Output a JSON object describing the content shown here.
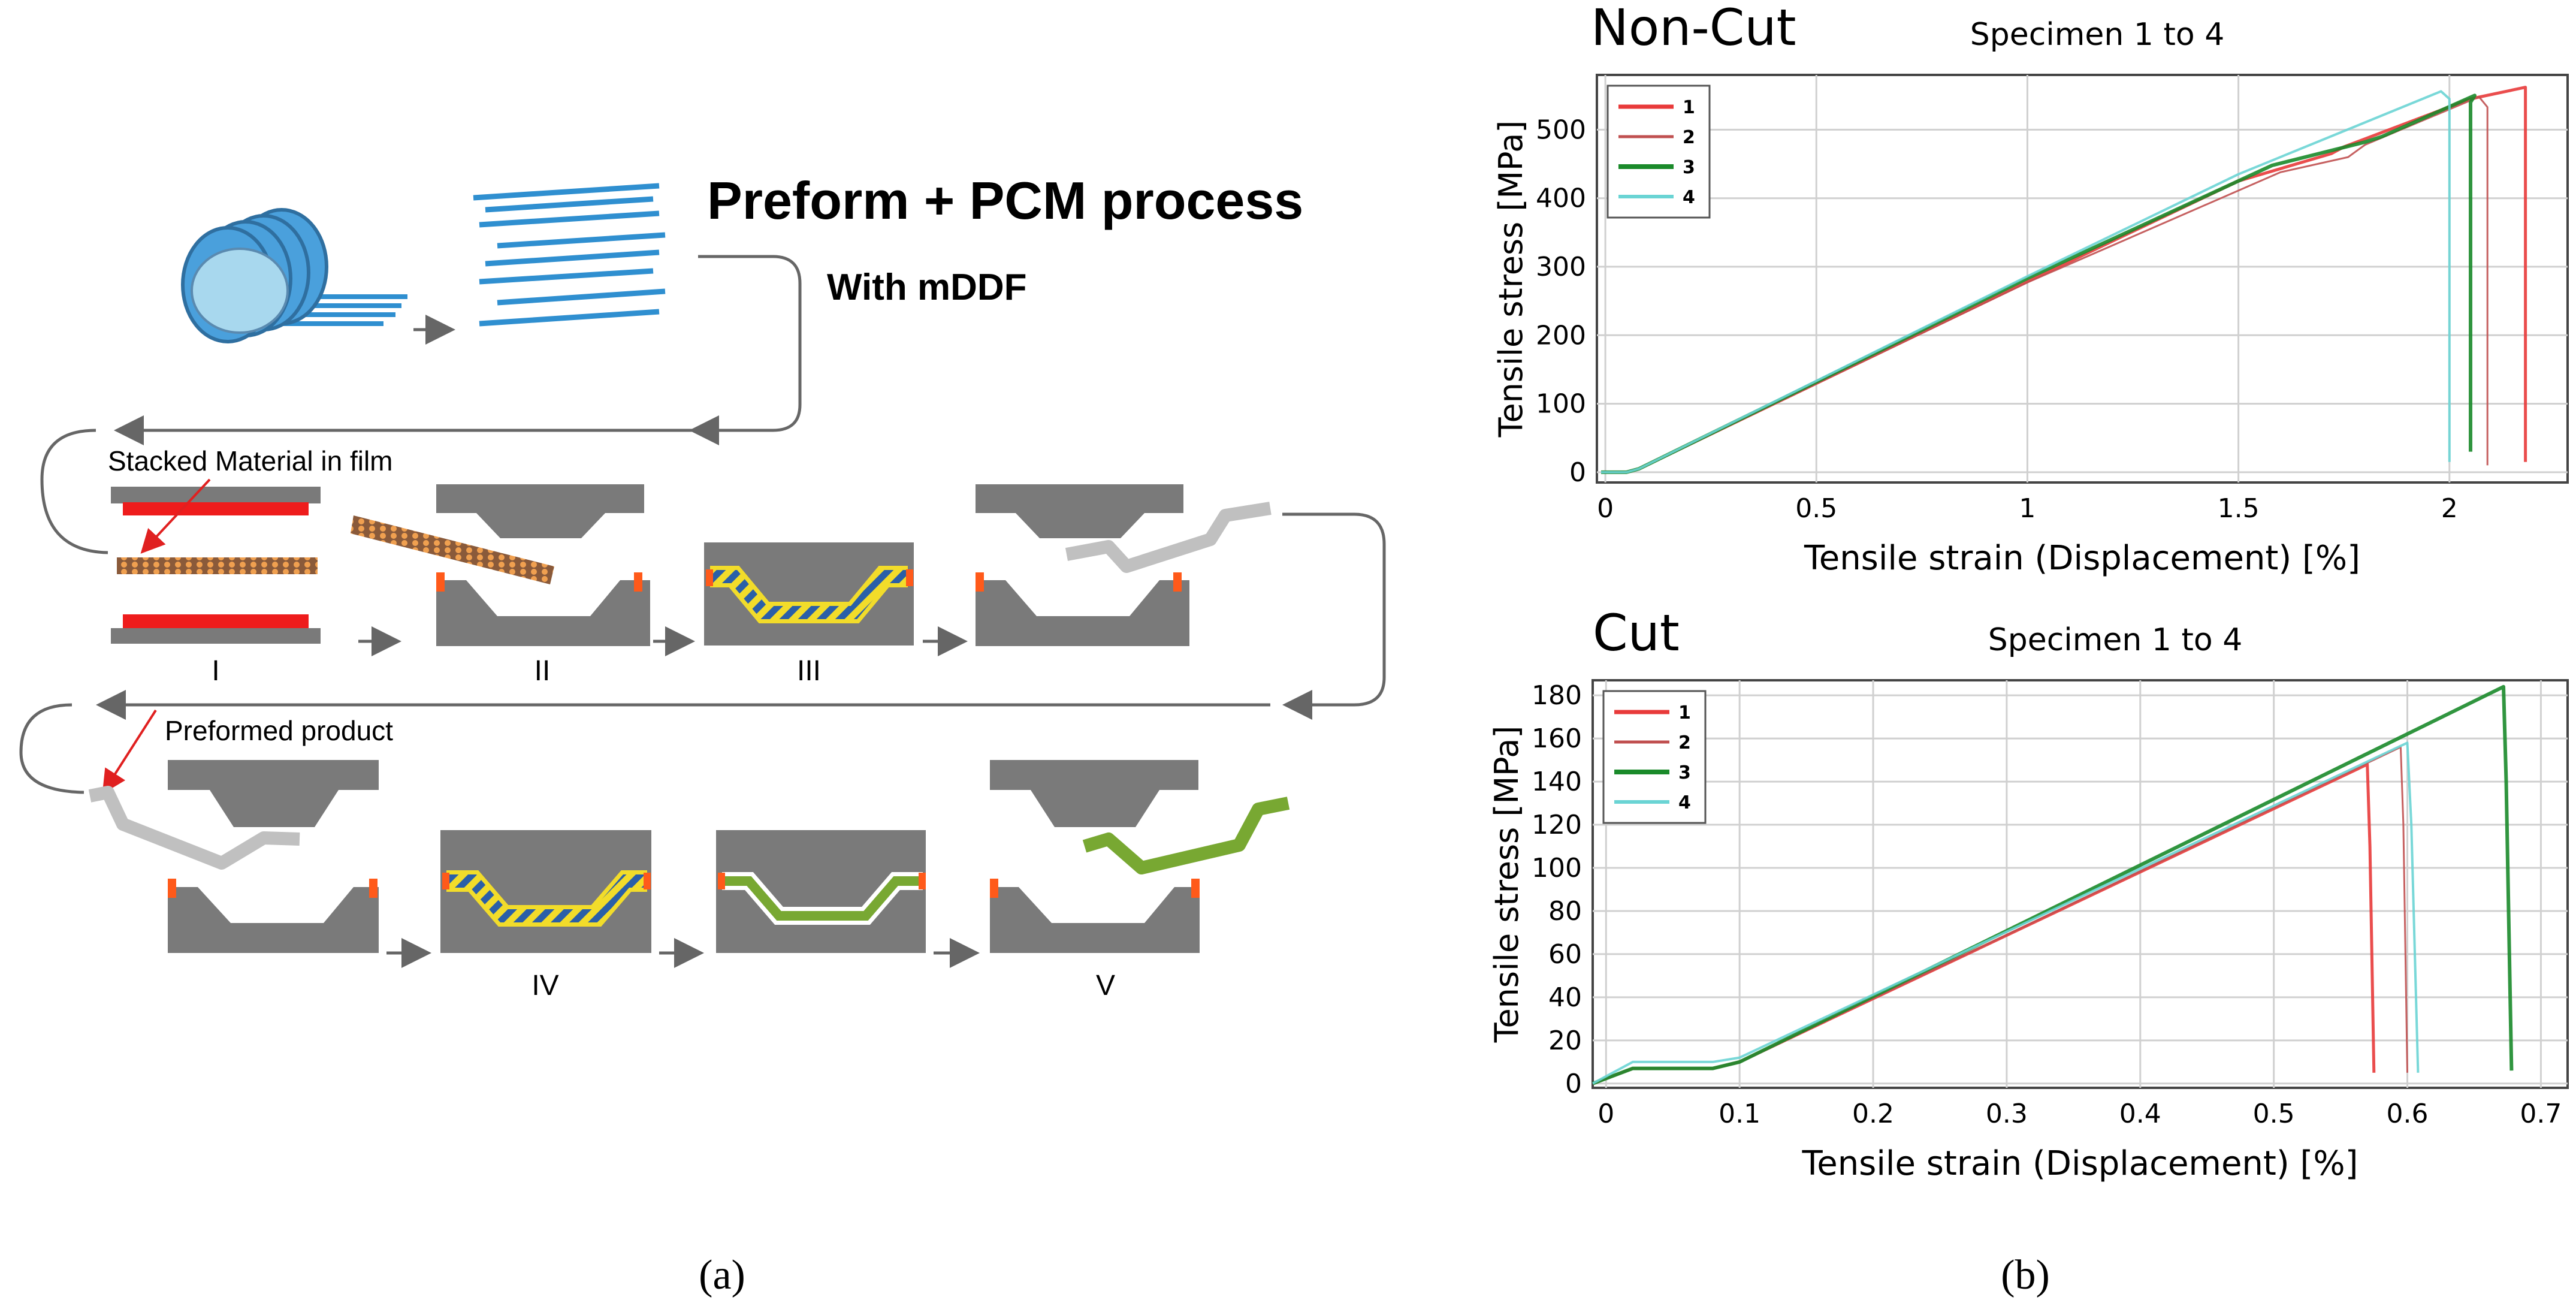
{
  "panel_a": {
    "title": "Preform + PCM process",
    "subtitle": "With mDDF",
    "label_stacked": "Stacked Material in film",
    "label_preformed": "Preformed product",
    "steps": [
      "I",
      "II",
      "III",
      "IV",
      "V"
    ],
    "panel_label": "(a)",
    "colors": {
      "mold": "#7a7a7a",
      "heater": "#ee1c1c",
      "fiber": "#2f8fd0",
      "resin": "#f2dc2a",
      "product": "#78a832",
      "stop": "#ff5a1a",
      "arrow": "#666666"
    }
  },
  "panel_b_label": "(b)",
  "chart_data": [
    {
      "type": "line",
      "title": "Non-Cut",
      "subtitle": "Specimen 1 to 4",
      "xlabel": "Tensile strain (Displacement) [%]",
      "ylabel": "Tensile stress [MPa]",
      "xlim": [
        -0.02,
        2.28
      ],
      "ylim": [
        -15,
        580
      ],
      "xticks": [
        0,
        0.5,
        1,
        1.5,
        2
      ],
      "xtick_labels": [
        "0",
        "0.5",
        "1",
        "1.5",
        "2"
      ],
      "yticks": [
        0,
        100,
        200,
        300,
        400,
        500
      ],
      "ytick_labels": [
        "0",
        "100",
        "200",
        "300",
        "400",
        "500"
      ],
      "grid": true,
      "legend": "top-left",
      "series": [
        {
          "name": "1",
          "color": "#e83a3a",
          "width": 5,
          "x": [
            -0.01,
            0.05,
            0.08,
            1.0,
            1.5,
            1.72,
            1.75,
            2.05,
            2.18,
            2.18
          ],
          "y": [
            0,
            0,
            5,
            278,
            425,
            465,
            475,
            545,
            562,
            15
          ]
        },
        {
          "name": "2",
          "color": "#c05050",
          "width": 3,
          "x": [
            -0.01,
            0.05,
            0.08,
            1.0,
            1.6,
            1.76,
            1.8,
            2.07,
            2.09,
            2.09
          ],
          "y": [
            0,
            0,
            5,
            277,
            438,
            460,
            478,
            548,
            533,
            10
          ]
        },
        {
          "name": "3",
          "color": "#1a8a2a",
          "width": 6,
          "x": [
            -0.01,
            0.05,
            0.08,
            1.0,
            1.58,
            1.8,
            1.84,
            2.06,
            2.05,
            2.05
          ],
          "y": [
            0,
            0,
            5,
            283,
            448,
            482,
            490,
            550,
            540,
            30
          ]
        },
        {
          "name": "4",
          "color": "#6ad4d4",
          "width": 4,
          "x": [
            -0.01,
            0.05,
            0.08,
            1.0,
            1.5,
            1.98,
            2.0,
            2.0
          ],
          "y": [
            0,
            0,
            5,
            286,
            435,
            556,
            545,
            15
          ]
        }
      ]
    },
    {
      "type": "line",
      "title": "Cut",
      "subtitle": "Specimen 1 to 4",
      "xlabel": "Tensile strain (Displacement) [%]",
      "ylabel": "Tensile stress [MPa]",
      "xlim": [
        -0.01,
        0.72
      ],
      "ylim": [
        -2,
        187
      ],
      "xticks": [
        0,
        0.1,
        0.2,
        0.3,
        0.4,
        0.5,
        0.6,
        0.7
      ],
      "xtick_labels": [
        "0",
        "0.1",
        "0.2",
        "0.3",
        "0.4",
        "0.5",
        "0.6",
        "0.7"
      ],
      "yticks": [
        0,
        20,
        40,
        60,
        80,
        100,
        120,
        140,
        160,
        180
      ],
      "ytick_labels": [
        "0",
        "20",
        "40",
        "60",
        "80",
        "100",
        "120",
        "140",
        "160",
        "180"
      ],
      "grid": true,
      "legend": "top-left",
      "series": [
        {
          "name": "1",
          "color": "#e83a3a",
          "width": 5,
          "x": [
            -0.01,
            0.02,
            0.08,
            0.1,
            0.57,
            0.572,
            0.575
          ],
          "y": [
            0,
            7,
            7,
            10,
            148,
            110,
            5
          ]
        },
        {
          "name": "2",
          "color": "#c05050",
          "width": 3,
          "x": [
            -0.01,
            0.02,
            0.08,
            0.1,
            0.595,
            0.597,
            0.6
          ],
          "y": [
            0,
            7,
            7,
            10,
            156,
            120,
            5
          ]
        },
        {
          "name": "3",
          "color": "#1a8a2a",
          "width": 6,
          "x": [
            -0.01,
            0.02,
            0.08,
            0.1,
            0.672,
            0.674,
            0.678
          ],
          "y": [
            0,
            7,
            7,
            10,
            184,
            140,
            6
          ]
        },
        {
          "name": "4",
          "color": "#6ad4d4",
          "width": 4,
          "x": [
            -0.01,
            0.02,
            0.08,
            0.1,
            0.6,
            0.603,
            0.608
          ],
          "y": [
            0,
            10,
            10,
            12,
            158,
            120,
            5
          ]
        }
      ]
    }
  ]
}
